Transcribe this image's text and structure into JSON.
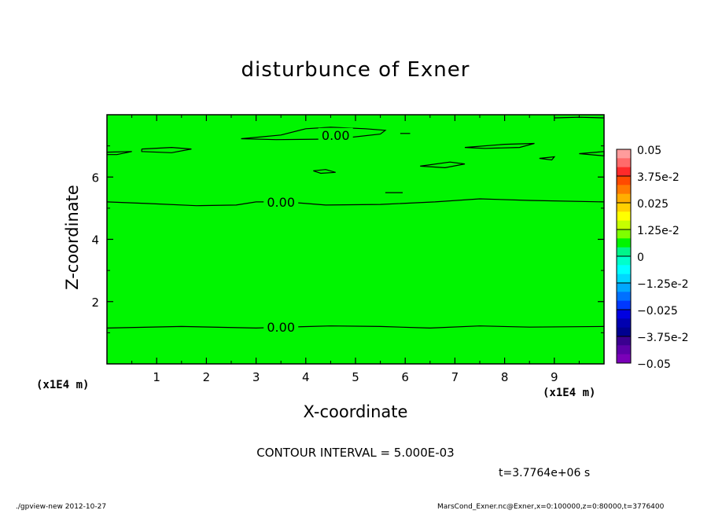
{
  "chart_data": {
    "type": "heatmap",
    "title": "disturbunce of Exner",
    "xlabel": "X-coordinate",
    "ylabel": "Z-coordinate",
    "x_unit": "(x1E4 m)",
    "xlim": [
      0,
      10
    ],
    "ylim": [
      0,
      8
    ],
    "xticks": [
      1,
      2,
      3,
      4,
      5,
      6,
      7,
      8,
      9
    ],
    "yticks": [
      2,
      4,
      6
    ],
    "field_value": 0,
    "contour_interval": "CONTOUR INTERVAL = 5.000E-03",
    "contours": [
      {
        "label": "0.00",
        "points": [
          [
            0,
            1.15
          ],
          [
            1.5,
            1.2
          ],
          [
            3,
            1.15
          ],
          [
            3.6,
            1.18
          ],
          [
            4.5,
            1.22
          ],
          [
            5.5,
            1.2
          ],
          [
            6.5,
            1.15
          ],
          [
            7.5,
            1.22
          ],
          [
            8.5,
            1.18
          ],
          [
            10,
            1.2
          ]
        ]
      },
      {
        "label": "0.00",
        "points": [
          [
            0,
            5.2
          ],
          [
            0.8,
            5.15
          ],
          [
            1.8,
            5.08
          ],
          [
            2.6,
            5.1
          ],
          [
            3,
            5.2
          ],
          [
            3.6,
            5.2
          ],
          [
            4.4,
            5.1
          ],
          [
            5.5,
            5.12
          ],
          [
            6.6,
            5.2
          ],
          [
            7.5,
            5.3
          ],
          [
            8.5,
            5.25
          ],
          [
            10,
            5.2
          ]
        ]
      },
      {
        "label": "0.00",
        "points": [
          [
            2.7,
            7.23
          ],
          [
            3.5,
            7.35
          ],
          [
            4.0,
            7.55
          ],
          [
            4.5,
            7.6
          ],
          [
            5.2,
            7.55
          ],
          [
            5.6,
            7.5
          ],
          [
            5.5,
            7.38
          ],
          [
            4.6,
            7.22
          ],
          [
            3.4,
            7.2
          ],
          [
            2.7,
            7.23
          ]
        ]
      },
      {
        "label": "",
        "points": [
          [
            0,
            6.8
          ],
          [
            0.5,
            6.82
          ],
          [
            0.2,
            6.72
          ],
          [
            0,
            6.72
          ]
        ]
      },
      {
        "label": "",
        "points": [
          [
            0.7,
            6.9
          ],
          [
            1.3,
            6.95
          ],
          [
            1.7,
            6.9
          ],
          [
            1.3,
            6.78
          ],
          [
            0.7,
            6.82
          ],
          [
            0.7,
            6.9
          ]
        ]
      },
      {
        "label": "",
        "points": [
          [
            6.3,
            6.35
          ],
          [
            6.9,
            6.48
          ],
          [
            7.2,
            6.42
          ],
          [
            6.8,
            6.3
          ],
          [
            6.3,
            6.35
          ]
        ]
      },
      {
        "label": "",
        "points": [
          [
            7.2,
            6.95
          ],
          [
            8.0,
            7.05
          ],
          [
            8.6,
            7.08
          ],
          [
            8.3,
            6.95
          ],
          [
            7.6,
            6.92
          ],
          [
            7.2,
            6.95
          ]
        ]
      },
      {
        "label": "",
        "points": [
          [
            4.15,
            6.2
          ],
          [
            4.4,
            6.24
          ],
          [
            4.6,
            6.15
          ],
          [
            4.3,
            6.12
          ],
          [
            4.15,
            6.2
          ]
        ]
      },
      {
        "label": "",
        "points": [
          [
            5.6,
            5.5
          ],
          [
            5.95,
            5.5
          ]
        ]
      },
      {
        "label": "",
        "points": [
          [
            5.9,
            7.4
          ],
          [
            6.1,
            7.4
          ]
        ]
      },
      {
        "label": "",
        "points": [
          [
            8.7,
            6.6
          ],
          [
            9.0,
            6.65
          ],
          [
            8.95,
            6.55
          ],
          [
            8.7,
            6.6
          ]
        ]
      },
      {
        "label": "",
        "points": [
          [
            9.5,
            6.75
          ],
          [
            10,
            6.82
          ],
          [
            10,
            6.68
          ],
          [
            9.5,
            6.75
          ]
        ]
      },
      {
        "label": "",
        "points": [
          [
            9.0,
            7.9
          ],
          [
            9.5,
            7.92
          ],
          [
            10,
            7.9
          ]
        ]
      }
    ],
    "colorbar": {
      "labels": [
        "0.05",
        "3.75e-2",
        "0.025",
        "1.25e-2",
        "0",
        "−1.25e-2",
        "−0.025",
        "−3.75e-2",
        "−0.05"
      ],
      "colors_top_to_bottom": [
        "#ff9c9c",
        "#ff6b6b",
        "#ff2a2a",
        "#ff4a00",
        "#ff7a00",
        "#ffae00",
        "#ffd000",
        "#ffff00",
        "#c6ff00",
        "#7fff00",
        "#00f500",
        "#00f58a",
        "#00ffcb",
        "#00ffff",
        "#00d8ff",
        "#00a8ff",
        "#0070ff",
        "#0038ff",
        "#0000e0",
        "#0000b0",
        "#000090",
        "#3a0090",
        "#5c00a8",
        "#7a00b8"
      ]
    },
    "field_color": "#00f500",
    "legend": "right"
  },
  "time_label": "t=3.7764e+06 s",
  "footer": {
    "left": "./gpview-new   2012-10-27",
    "right": "MarsCond_Exner.nc@Exner,x=0:100000,z=0:80000,t=3776400"
  }
}
